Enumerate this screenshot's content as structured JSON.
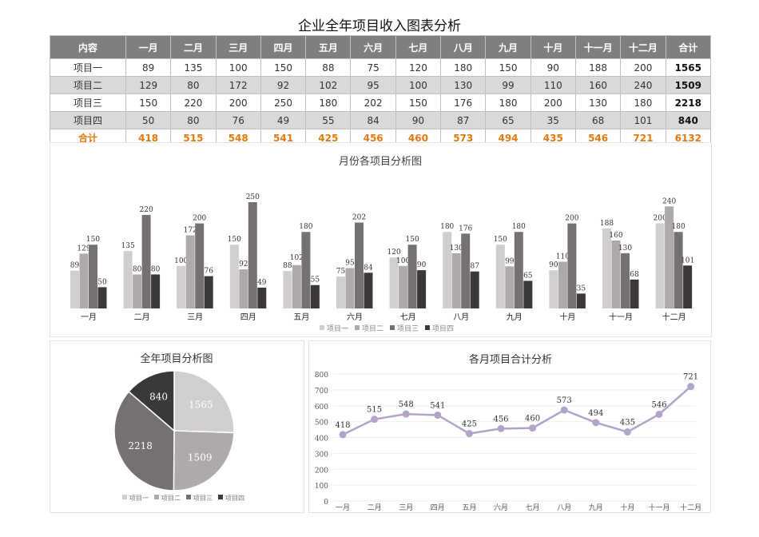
{
  "title": "企业全年项目收入图表分析",
  "table": {
    "headers": [
      "内容",
      "一月",
      "二月",
      "三月",
      "四月",
      "五月",
      "六月",
      "七月",
      "八月",
      "九月",
      "十月",
      "十一月",
      "十二月",
      "合计"
    ],
    "rows": [
      [
        "项目一",
        "89",
        "135",
        "100",
        "150",
        "88",
        "75",
        "120",
        "180",
        "150",
        "90",
        "188",
        "200",
        "1565"
      ],
      [
        "项目二",
        "129",
        "80",
        "172",
        "92",
        "102",
        "95",
        "100",
        "130",
        "99",
        "110",
        "160",
        "240",
        "1509"
      ],
      [
        "项目三",
        "150",
        "220",
        "200",
        "250",
        "180",
        "202",
        "150",
        "176",
        "180",
        "200",
        "130",
        "180",
        "2218"
      ],
      [
        "项目四",
        "50",
        "80",
        "76",
        "49",
        "55",
        "84",
        "90",
        "87",
        "65",
        "35",
        "68",
        "101",
        "840"
      ],
      [
        "合计",
        "418",
        "515",
        "548",
        "541",
        "425",
        "456",
        "460",
        "573",
        "494",
        "435",
        "546",
        "721",
        "6132"
      ]
    ]
  },
  "chart_data": [
    {
      "type": "bar",
      "title": "月份各项目分析图",
      "categories": [
        "一月",
        "二月",
        "三月",
        "四月",
        "五月",
        "六月",
        "七月",
        "八月",
        "九月",
        "十月",
        "十一月",
        "十二月"
      ],
      "series": [
        {
          "name": "项目一",
          "values": [
            89,
            135,
            100,
            150,
            88,
            75,
            120,
            180,
            150,
            90,
            188,
            200
          ],
          "color": "#d0cece"
        },
        {
          "name": "项目二",
          "values": [
            129,
            80,
            172,
            92,
            102,
            95,
            100,
            130,
            99,
            110,
            160,
            240
          ],
          "color": "#aeaaaa"
        },
        {
          "name": "项目三",
          "values": [
            150,
            220,
            200,
            250,
            180,
            202,
            150,
            176,
            180,
            200,
            130,
            180
          ],
          "color": "#767171"
        },
        {
          "name": "项目四",
          "values": [
            50,
            80,
            76,
            49,
            55,
            84,
            90,
            87,
            65,
            35,
            68,
            101
          ],
          "color": "#3b3838"
        }
      ],
      "legend": "bottom",
      "data_labels": true
    },
    {
      "type": "pie",
      "title": "全年项目分析图",
      "categories": [
        "项目一",
        "项目二",
        "项目三",
        "项目四"
      ],
      "values": [
        1565,
        1509,
        2218,
        840
      ],
      "colors": [
        "#d0cece",
        "#aeaaaa",
        "#767171",
        "#3b3838"
      ],
      "legend": "bottom"
    },
    {
      "type": "line",
      "title": "各月项目合计分析",
      "categories": [
        "一月",
        "二月",
        "三月",
        "四月",
        "五月",
        "六月",
        "七月",
        "八月",
        "九月",
        "十月",
        "十一月",
        "十二月"
      ],
      "values": [
        418,
        515,
        548,
        541,
        425,
        456,
        460,
        573,
        494,
        435,
        546,
        721
      ],
      "ylim": [
        0,
        800
      ],
      "yticks": [
        0,
        100,
        200,
        300,
        400,
        500,
        600,
        700,
        800
      ],
      "color": "#b2a3c8",
      "grid": true
    }
  ]
}
